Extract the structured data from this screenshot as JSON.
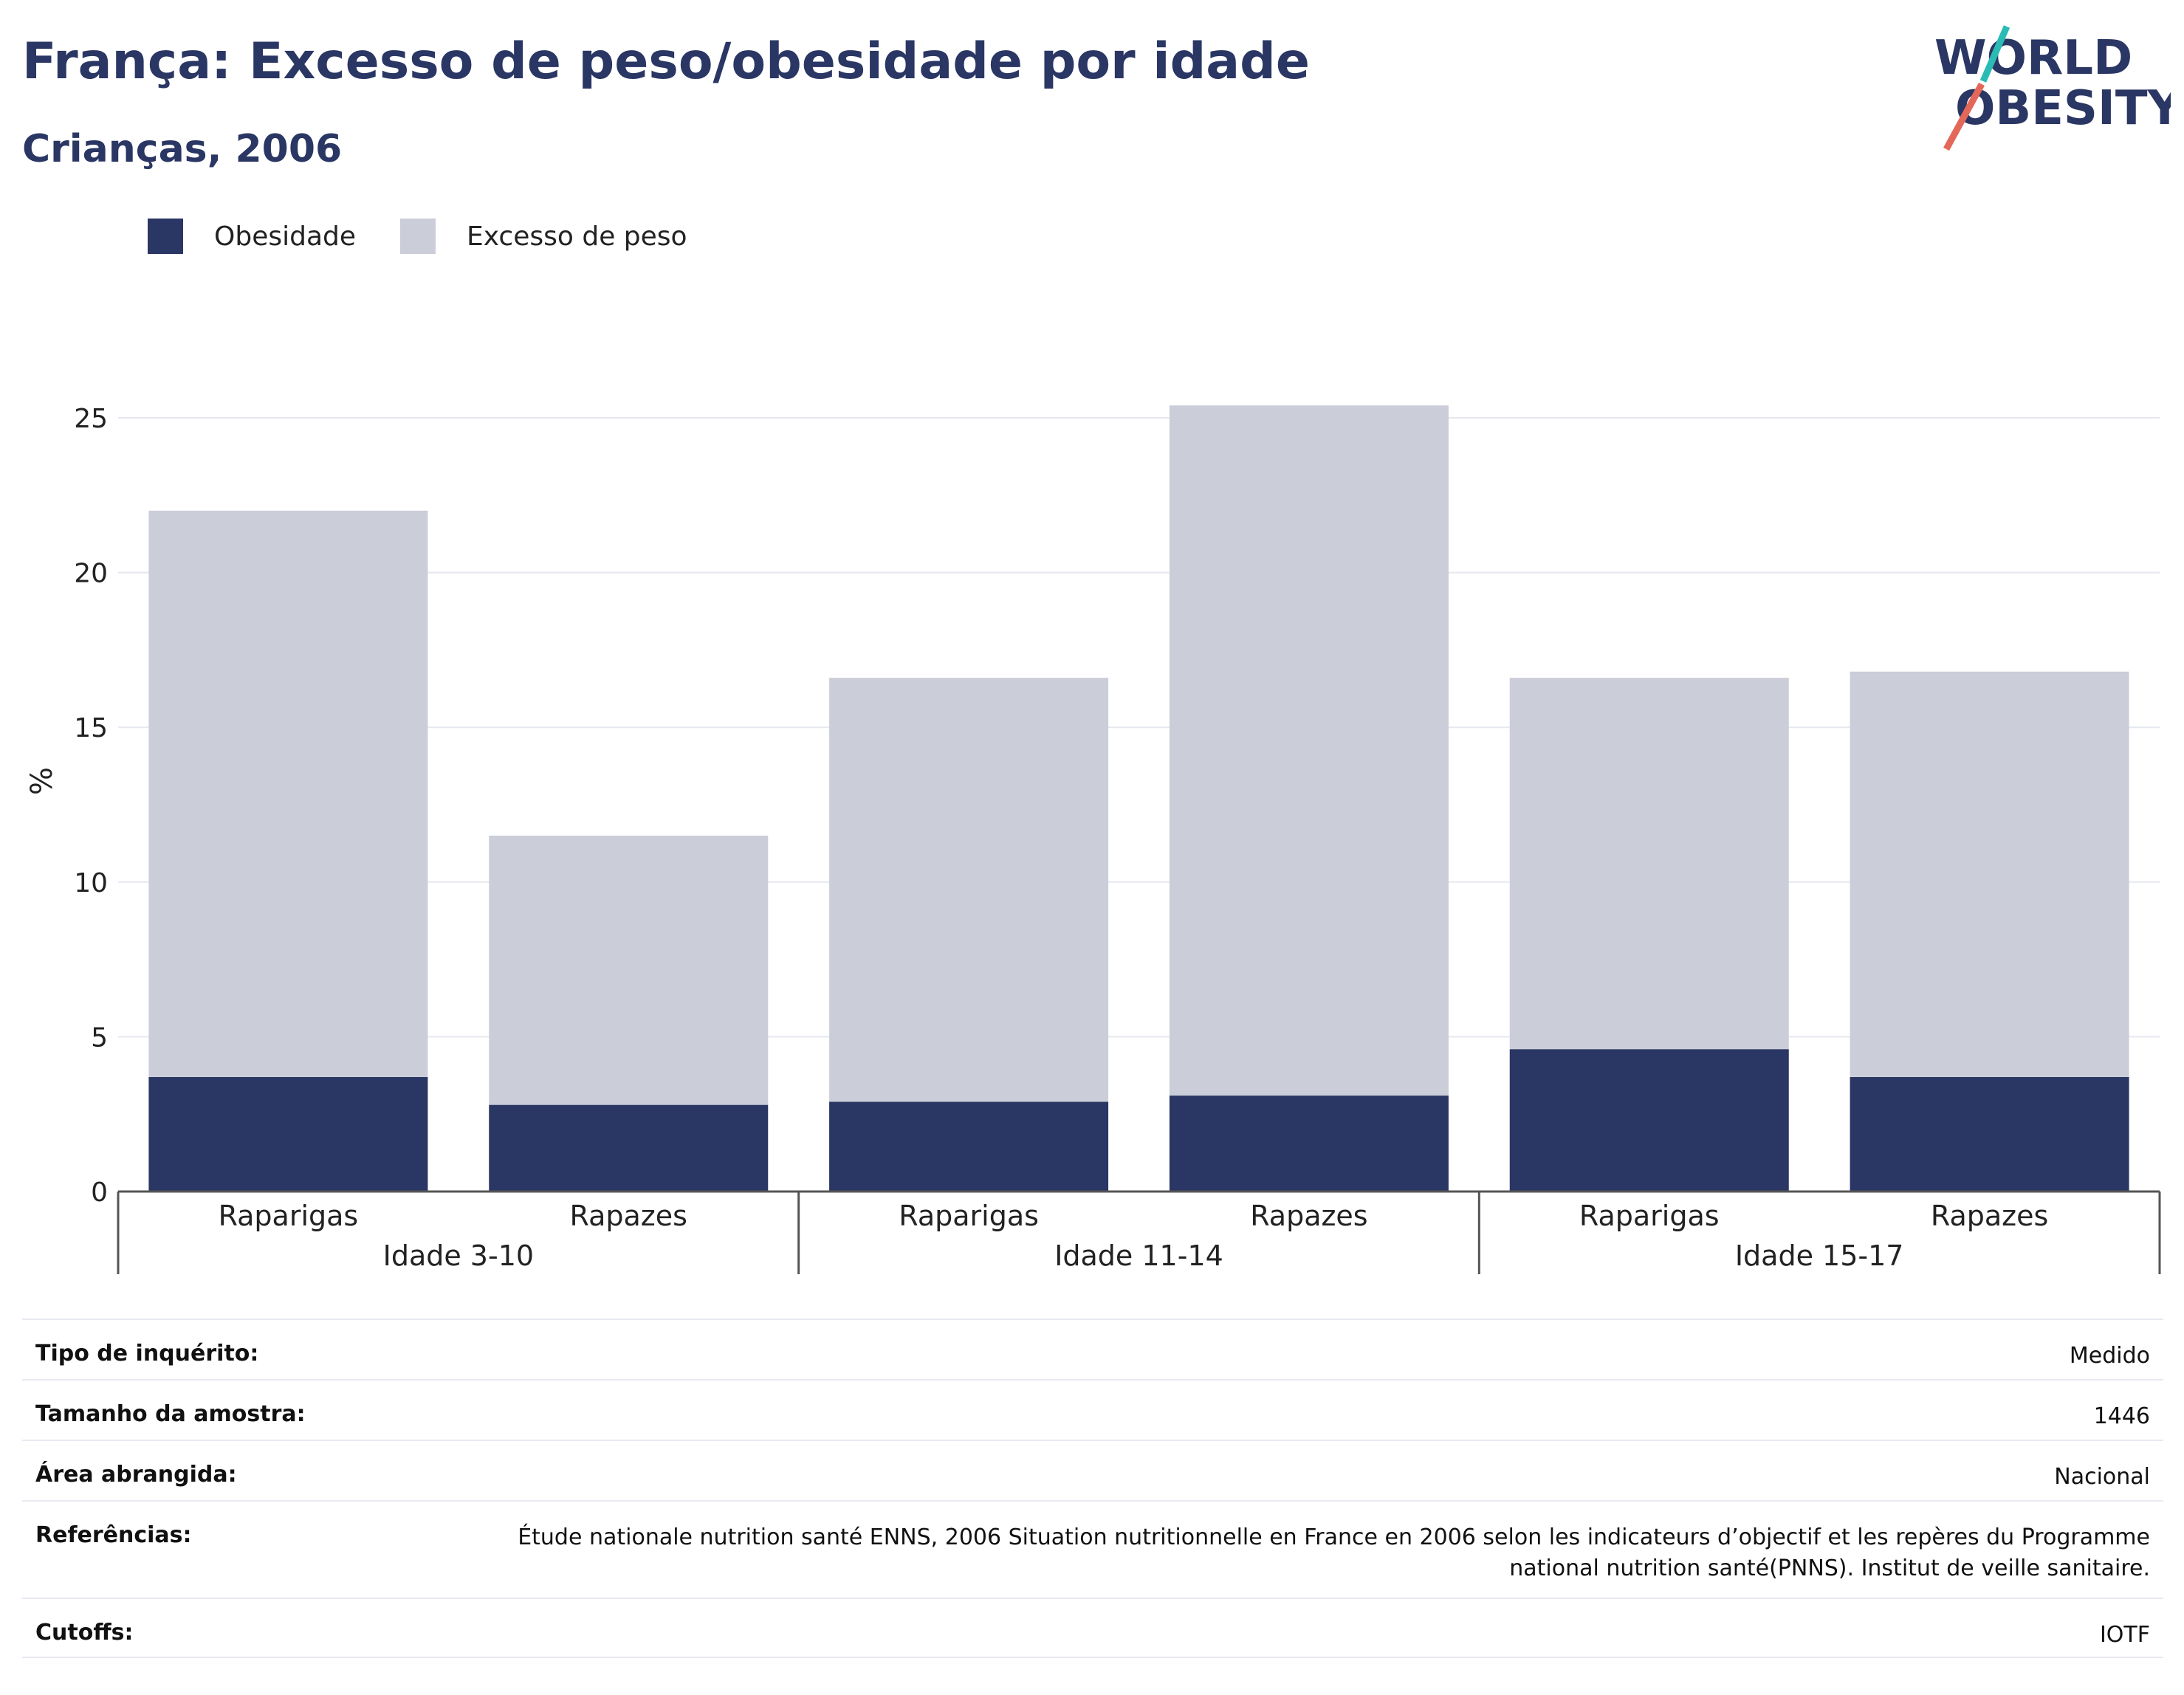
{
  "header": {
    "title": "França: Excesso de peso/obesidade por idade",
    "subtitle": "Crianças, 2006",
    "logo_text": [
      "WORLD",
      "OBESITY"
    ]
  },
  "legend": [
    {
      "label": "Obesidade",
      "color": "#2a3663"
    },
    {
      "label": "Excesso de peso",
      "color": "#cbcdd9"
    }
  ],
  "chart_data": {
    "type": "bar",
    "stacked": true,
    "title": "França: Excesso de peso/obesidade por idade",
    "subtitle": "Crianças, 2006",
    "ylabel": "%",
    "ylim": [
      0,
      27
    ],
    "yticks": [
      0,
      5,
      10,
      15,
      20,
      25
    ],
    "grid": true,
    "legend_position": "top-left",
    "groups": [
      {
        "label": "Idade 3-10",
        "categories": [
          "Raparigas",
          "Rapazes"
        ]
      },
      {
        "label": "Idade 11-14",
        "categories": [
          "Raparigas",
          "Rapazes"
        ]
      },
      {
        "label": "Idade 15-17",
        "categories": [
          "Raparigas",
          "Rapazes"
        ]
      }
    ],
    "categories": [
      "Raparigas",
      "Rapazes",
      "Raparigas",
      "Rapazes",
      "Raparigas",
      "Rapazes"
    ],
    "series": [
      {
        "name": "Obesidade",
        "color": "#2a3663",
        "values": [
          3.7,
          2.8,
          2.9,
          3.1,
          4.6,
          3.7
        ]
      },
      {
        "name": "Excesso de peso",
        "color": "#cbcdd9",
        "values": [
          18.3,
          8.7,
          13.7,
          22.3,
          12.0,
          13.1
        ]
      }
    ]
  },
  "info": [
    {
      "label": "Tipo de inquérito:",
      "value": "Medido"
    },
    {
      "label": "Tamanho da amostra:",
      "value": "1446"
    },
    {
      "label": "Área abrangida:",
      "value": "Nacional"
    },
    {
      "label": "Referências:",
      "value": "Étude nationale nutrition santé ENNS, 2006 Situation nutritionnelle en France en 2006 selon les indicateurs d’objectif et les repères du Programme national nutrition santé(PNNS). Institut de veille sanitaire."
    },
    {
      "label": "Cutoffs:",
      "value": "IOTF"
    }
  ]
}
